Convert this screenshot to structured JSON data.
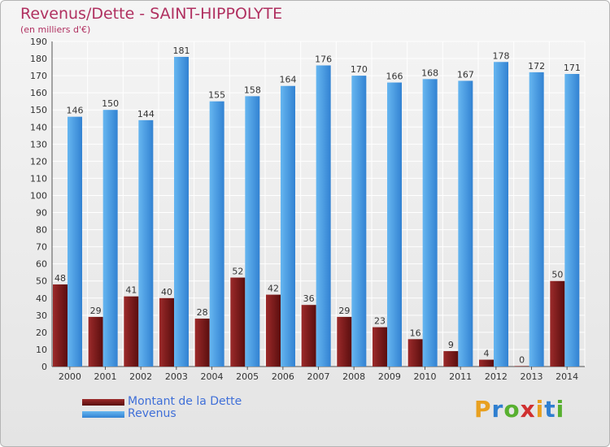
{
  "header": {
    "title": "Revenus/Dette - SAINT-HIPPOLYTE",
    "subtitle": "(en milliers d'€)"
  },
  "brand": {
    "letters": [
      "P",
      "r",
      "o",
      "x",
      "i",
      "t",
      "i"
    ],
    "colors": [
      "#e8a020",
      "#2f7fd0",
      "#58b030",
      "#d03030",
      "#e8a020",
      "#2f7fd0",
      "#58b030"
    ]
  },
  "colors": {
    "dette": "#6b1414",
    "dette_light": "#9c2a2a",
    "revenus": "#3a8fdc",
    "revenus_light": "#62b2ee",
    "grid": "#ffffff",
    "background": "#e8e8e8"
  },
  "chart_data": {
    "type": "bar",
    "title": "Revenus/Dette - SAINT-HIPPOLYTE",
    "ylabel": "(en milliers d'€)",
    "categories": [
      "2000",
      "2001",
      "2002",
      "2003",
      "2004",
      "2005",
      "2006",
      "2007",
      "2008",
      "2009",
      "2010",
      "2011",
      "2012",
      "2013",
      "2014"
    ],
    "series": [
      {
        "name": "Montant de la Dette",
        "values": [
          48,
          29,
          41,
          40,
          28,
          52,
          42,
          36,
          29,
          23,
          16,
          9,
          4,
          0,
          50
        ]
      },
      {
        "name": "Revenus",
        "values": [
          146,
          150,
          144,
          181,
          155,
          158,
          164,
          176,
          170,
          166,
          168,
          167,
          178,
          172,
          171
        ]
      }
    ],
    "ylim": [
      0,
      190
    ],
    "yticks": [
      0,
      10,
      20,
      30,
      40,
      50,
      60,
      70,
      80,
      90,
      100,
      110,
      120,
      130,
      140,
      150,
      160,
      170,
      180,
      190
    ],
    "grid": true,
    "legend": "bottom-left"
  }
}
